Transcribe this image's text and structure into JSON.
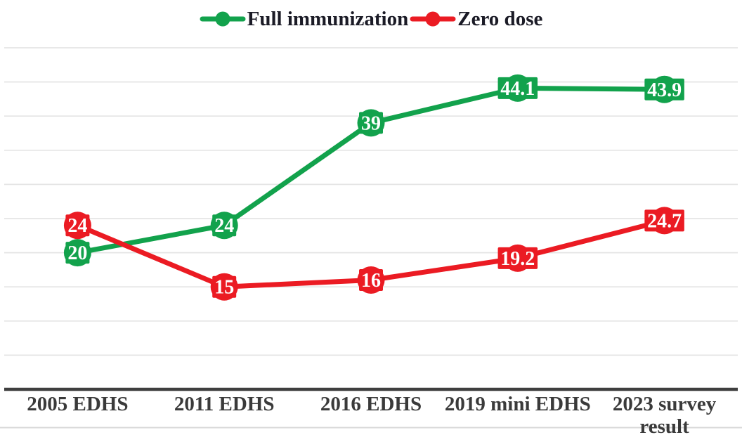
{
  "chart_data": {
    "type": "line",
    "title": "",
    "xlabel": "",
    "ylabel": "",
    "categories": [
      "2005 EDHS",
      "2011 EDHS",
      "2016 EDHS",
      "2019 mini EDHS",
      "2023 survey result"
    ],
    "series": [
      {
        "name": "Full immunization",
        "color": "#12A24C",
        "values": [
          20,
          24,
          39,
          44.1,
          43.9
        ]
      },
      {
        "name": "Zero dose",
        "color": "#EB1B23",
        "values": [
          24,
          15,
          16,
          19.2,
          24.7
        ]
      }
    ],
    "data_labels": [
      {
        "series": "Full immunization",
        "labels": [
          "20",
          "24",
          "39",
          "44.1",
          "43.9"
        ]
      },
      {
        "series": "Zero dose",
        "labels": [
          "24",
          "15",
          "16",
          "19.2",
          "24.7"
        ]
      }
    ],
    "ylim": [
      0,
      52
    ],
    "grid": "horizontal",
    "gridline_interval": 5,
    "gridline_max": 50,
    "legend_position": "top-center",
    "data_label_text_color": "#ffffff"
  },
  "colors": {
    "series_green": "#12A24C",
    "series_red": "#EB1B23",
    "gridline": "#e4e4e4",
    "axis_line": "#3f3f3f",
    "bottom_rule": "#d8d8d8",
    "legend_text": "#1b1b26",
    "x_label_text": "#3a3a3a",
    "background": "#ffffff"
  }
}
